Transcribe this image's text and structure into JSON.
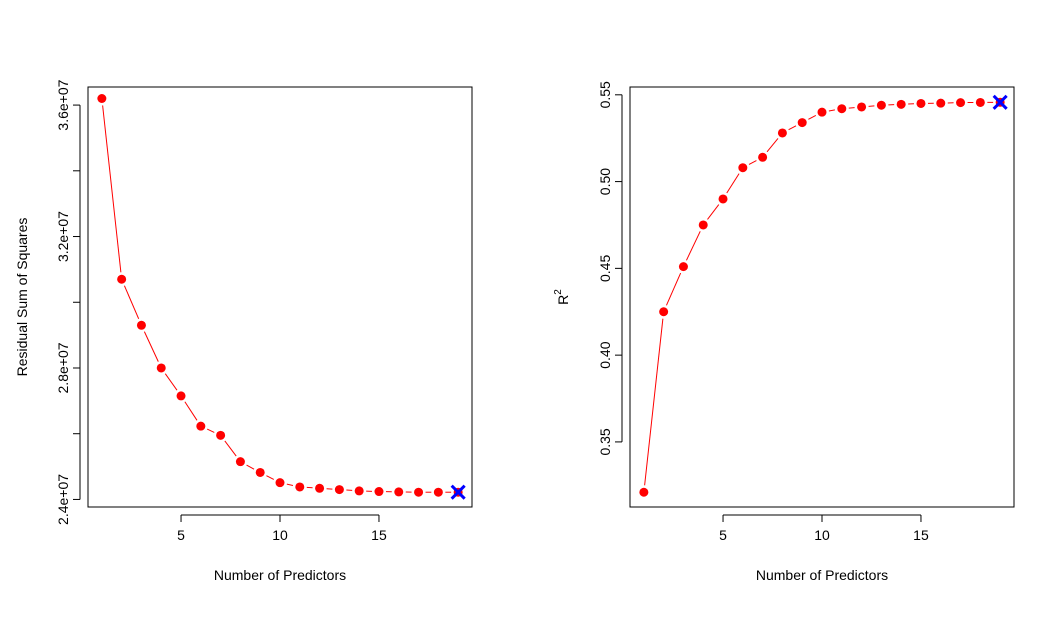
{
  "colors": {
    "series": "#ff0000",
    "marker": "#0000ff",
    "axis": "#000000"
  },
  "chart_data": [
    {
      "type": "line",
      "xlabel": "Number of Predictors",
      "ylabel": "Residual Sum of Squares",
      "ylabel_superscript": "",
      "xlim": [
        0.3,
        19.7
      ],
      "ylim": [
        23770000,
        36550000
      ],
      "xticks": [
        5,
        10,
        15
      ],
      "xtick_labels": [
        "5",
        "10",
        "15"
      ],
      "yticks": [
        24000000,
        26000000,
        28000000,
        30000000,
        32000000,
        34000000,
        36000000
      ],
      "ytick_labels": [
        "2.4e+07",
        "",
        "2.8e+07",
        "",
        "3.2e+07",
        "",
        "3.6e+07"
      ],
      "x": [
        1,
        2,
        3,
        4,
        5,
        6,
        7,
        8,
        9,
        10,
        11,
        12,
        13,
        14,
        15,
        16,
        17,
        18,
        19
      ],
      "y": [
        36200000,
        30700000,
        29300000,
        28000000,
        27150000,
        26230000,
        25950000,
        25150000,
        24820000,
        24510000,
        24380000,
        24340000,
        24300000,
        24260000,
        24240000,
        24230000,
        24220000,
        24220000,
        24220000
      ],
      "highlight": {
        "x": 19,
        "y": 24220000,
        "symbol": "X",
        "label": "minimum"
      }
    },
    {
      "type": "line",
      "xlabel": "Number of Predictors",
      "ylabel": "R",
      "ylabel_superscript": "2",
      "xlim": [
        0.3,
        19.7
      ],
      "ylim": [
        0.3125,
        0.5545
      ],
      "xticks": [
        5,
        10,
        15
      ],
      "xtick_labels": [
        "5",
        "10",
        "15"
      ],
      "yticks": [
        0.35,
        0.4,
        0.45,
        0.5,
        0.55
      ],
      "ytick_labels": [
        "0.35",
        "0.40",
        "0.45",
        "0.50",
        "0.55"
      ],
      "x": [
        1,
        2,
        3,
        4,
        5,
        6,
        7,
        8,
        9,
        10,
        11,
        12,
        13,
        14,
        15,
        16,
        17,
        18,
        19
      ],
      "y": [
        0.321,
        0.425,
        0.451,
        0.475,
        0.49,
        0.508,
        0.514,
        0.528,
        0.534,
        0.54,
        0.542,
        0.543,
        0.544,
        0.5445,
        0.545,
        0.5452,
        0.5455,
        0.5456,
        0.5457
      ],
      "highlight": {
        "x": 19,
        "y": 0.5457,
        "symbol": "X",
        "label": "maximum"
      }
    }
  ]
}
